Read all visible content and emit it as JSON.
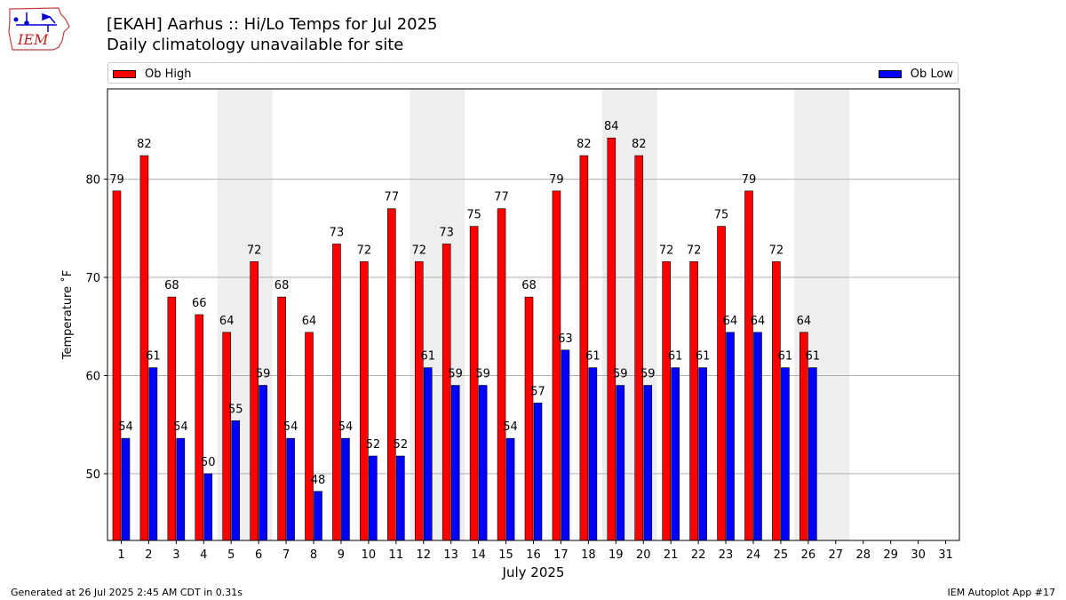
{
  "header": {
    "title": "[EKAH] Aarhus :: Hi/Lo Temps for Jul 2025",
    "subtitle": "Daily climatology unavailable for site"
  },
  "logo": {
    "text": "IEM",
    "icon": "iem-iowa-weather-station-logo"
  },
  "legend": [
    {
      "label": "Ob High",
      "color": "#ff0000"
    },
    {
      "label": "Ob Low",
      "color": "#0000ff"
    }
  ],
  "chart_data": {
    "type": "bar",
    "title": "[EKAH] Aarhus :: Hi/Lo Temps for Jul 2025",
    "subtitle": "Daily climatology unavailable for site",
    "xlabel": "July 2025",
    "ylabel": "Temperature ˚F",
    "categories": [
      "1",
      "2",
      "3",
      "4",
      "5",
      "6",
      "7",
      "8",
      "9",
      "10",
      "11",
      "12",
      "13",
      "14",
      "15",
      "16",
      "17",
      "18",
      "19",
      "20",
      "21",
      "22",
      "23",
      "24",
      "25",
      "26",
      "27",
      "28",
      "29",
      "30",
      "31"
    ],
    "series": [
      {
        "name": "Ob High",
        "color": "#ff0000",
        "values": [
          79,
          82,
          68,
          66,
          64,
          72,
          68,
          64,
          73,
          72,
          77,
          72,
          73,
          75,
          77,
          68,
          79,
          82,
          84,
          82,
          72,
          72,
          75,
          79,
          72,
          64,
          null,
          null,
          null,
          null,
          null
        ],
        "plot_values": [
          78.8,
          82.4,
          68.0,
          66.2,
          64.4,
          71.6,
          68.0,
          64.4,
          73.4,
          71.6,
          77.0,
          71.6,
          73.4,
          75.2,
          77.0,
          68.0,
          78.8,
          82.4,
          84.2,
          82.4,
          71.6,
          71.6,
          75.2,
          78.8,
          71.6,
          64.4,
          null,
          null,
          null,
          null,
          null
        ]
      },
      {
        "name": "Ob Low",
        "color": "#0000ff",
        "values": [
          54,
          61,
          54,
          50,
          55,
          59,
          54,
          48,
          54,
          52,
          52,
          61,
          59,
          59,
          54,
          57,
          63,
          61,
          59,
          59,
          61,
          61,
          64,
          64,
          61,
          61,
          null,
          null,
          null,
          null,
          null
        ],
        "plot_values": [
          53.6,
          60.8,
          53.6,
          50.0,
          55.4,
          59.0,
          53.6,
          48.2,
          53.6,
          51.8,
          51.8,
          60.8,
          59.0,
          59.0,
          53.6,
          57.2,
          62.6,
          60.8,
          59.0,
          59.0,
          60.8,
          60.8,
          64.4,
          64.4,
          60.8,
          60.8,
          null,
          null,
          null,
          null,
          null
        ]
      }
    ],
    "ylim": [
      43.2,
      89.2
    ],
    "yticks": [
      50,
      60,
      70,
      80
    ],
    "grid": "horizontal",
    "weekend_shading_days": [
      5,
      6,
      12,
      13,
      19,
      20,
      26,
      27
    ],
    "shading_color": "#eeeeee",
    "legend_placement": "top"
  },
  "footer": {
    "generated": "Generated at 26 Jul 2025 2:45 AM CDT in 0.31s",
    "app": "IEM Autoplot App #17"
  }
}
